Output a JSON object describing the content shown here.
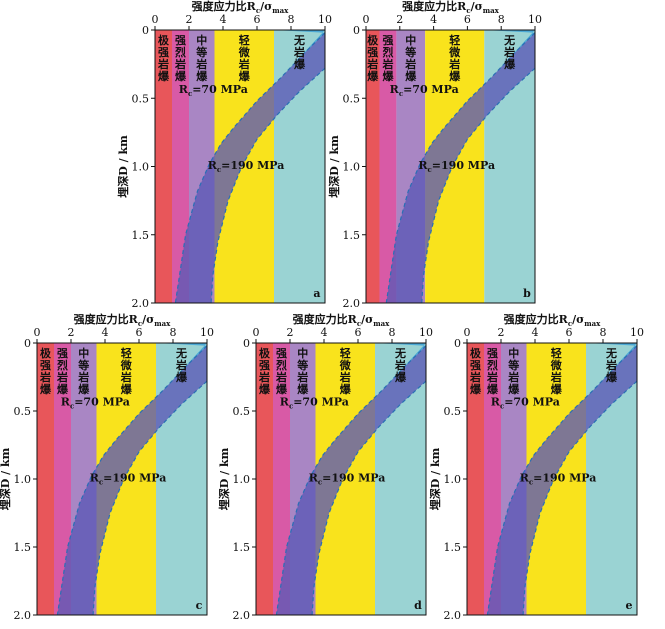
{
  "figure": {
    "x_title": "强度应力比R",
    "x_title_sub": "c",
    "x_title_sigma": "/σ",
    "x_title_sigma_sub": "max",
    "y_title": "埋深D / km"
  },
  "colors": {
    "zone_fills": [
      "#e8565a",
      "#d85aa6",
      "#a986c4",
      "#f9e31c",
      "#9ad3d3"
    ],
    "zone_fills_upper_right": "#2f9ad6",
    "band_fill": "#5b58b6",
    "band_over_yellow": "#9c9468",
    "curve_stroke": "#2a6fb5",
    "axis": "#111111"
  },
  "chart_data": [
    {
      "type": "area",
      "panel_label": "a",
      "xlim": [
        0,
        10
      ],
      "ylim": [
        0,
        2.0
      ],
      "y_inverted": true,
      "x_ticks": [
        0,
        2,
        4,
        6,
        8,
        10
      ],
      "y_ticks": [
        "0",
        "0.5",
        "1.0",
        "1.5",
        "2.0"
      ],
      "y_tick_values": [
        0,
        0.5,
        1.0,
        1.5,
        2.0
      ],
      "zones": [
        {
          "name": "极强岩爆",
          "x_range": [
            0,
            1.0
          ]
        },
        {
          "name": "强烈岩爆",
          "x_range": [
            1.0,
            2.0
          ]
        },
        {
          "name": "中等岩爆",
          "x_range": [
            2.0,
            3.5
          ]
        },
        {
          "name": "轻微岩爆",
          "x_range": [
            3.5,
            7.0
          ]
        },
        {
          "name": "无岩爆",
          "x_range": [
            7.0,
            10.0
          ]
        }
      ],
      "curves": [
        {
          "label": "R",
          "label_sub": "c",
          "label_rest": "=70 MPa",
          "y": [
            0.02,
            0.18,
            0.35,
            0.52,
            0.62,
            0.72,
            0.83,
            0.98,
            1.18,
            1.5,
            2.0
          ],
          "x": [
            10,
            8.7,
            7.4,
            6.0,
            5.3,
            4.6,
            3.9,
            3.2,
            2.5,
            1.8,
            1.2
          ]
        },
        {
          "label": "R",
          "label_sub": "c",
          "label_rest": "=190 MPa",
          "y": [
            0.28,
            0.45,
            0.62,
            0.8,
            1.0,
            1.25,
            1.55,
            1.8,
            2.0
          ],
          "x": [
            10,
            8.5,
            7.2,
            6.0,
            5.1,
            4.3,
            3.7,
            3.4,
            3.3
          ]
        }
      ]
    },
    {
      "type": "area",
      "panel_label": "b",
      "xlim": [
        0,
        10
      ],
      "ylim": [
        0,
        2.0
      ],
      "y_inverted": true,
      "x_ticks": [
        0,
        2,
        4,
        6,
        8,
        10
      ],
      "y_ticks": [
        "0",
        "0.5",
        "1.0",
        "1.5",
        "2.0"
      ],
      "y_tick_values": [
        0,
        0.5,
        1.0,
        1.5,
        2.0
      ],
      "zones": [
        {
          "name": "极强岩爆",
          "x_range": [
            0,
            0.8
          ]
        },
        {
          "name": "强烈岩爆",
          "x_range": [
            0.8,
            1.8
          ]
        },
        {
          "name": "中等岩爆",
          "x_range": [
            1.8,
            3.5
          ]
        },
        {
          "name": "轻微岩爆",
          "x_range": [
            3.5,
            7.0
          ]
        },
        {
          "name": "无岩爆",
          "x_range": [
            7.0,
            10.0
          ]
        }
      ],
      "curves": [
        {
          "label": "R",
          "label_sub": "c",
          "label_rest": "=70 MPa",
          "y": [
            0.02,
            0.18,
            0.35,
            0.52,
            0.62,
            0.72,
            0.83,
            0.98,
            1.18,
            1.5,
            2.0
          ],
          "x": [
            10,
            8.7,
            7.4,
            6.0,
            5.3,
            4.6,
            3.9,
            3.2,
            2.5,
            1.8,
            1.2
          ]
        },
        {
          "label": "R",
          "label_sub": "c",
          "label_rest": "=190 MPa",
          "y": [
            0.28,
            0.45,
            0.62,
            0.8,
            1.0,
            1.25,
            1.55,
            1.8,
            2.0
          ],
          "x": [
            10,
            8.5,
            7.2,
            6.0,
            5.1,
            4.3,
            3.7,
            3.4,
            3.3
          ]
        }
      ]
    },
    {
      "type": "area",
      "panel_label": "c",
      "xlim": [
        0,
        10
      ],
      "ylim": [
        0,
        2.0
      ],
      "y_inverted": true,
      "x_ticks": [
        0,
        2,
        4,
        6,
        8,
        10
      ],
      "y_ticks": [
        "0",
        "0.5",
        "1.0",
        "1.5",
        "2.0"
      ],
      "y_tick_values": [
        0,
        0.5,
        1.0,
        1.5,
        2.0
      ],
      "zones": [
        {
          "name": "极强岩爆",
          "x_range": [
            0,
            1.0
          ]
        },
        {
          "name": "强烈岩爆",
          "x_range": [
            1.0,
            2.0
          ]
        },
        {
          "name": "中等岩爆",
          "x_range": [
            2.0,
            3.5
          ]
        },
        {
          "name": "轻微岩爆",
          "x_range": [
            3.5,
            7.0
          ]
        },
        {
          "name": "无岩爆",
          "x_range": [
            7.0,
            10.0
          ]
        }
      ],
      "curves": [
        {
          "label": "R",
          "label_sub": "c",
          "label_rest": "=70 MPa",
          "y": [
            0.02,
            0.18,
            0.35,
            0.52,
            0.62,
            0.72,
            0.83,
            0.98,
            1.18,
            1.5,
            2.0
          ],
          "x": [
            10,
            8.7,
            7.4,
            6.0,
            5.3,
            4.6,
            3.9,
            3.2,
            2.5,
            1.8,
            1.2
          ]
        },
        {
          "label": "R",
          "label_sub": "c",
          "label_rest": "=190 MPa",
          "y": [
            0.28,
            0.45,
            0.62,
            0.8,
            1.0,
            1.25,
            1.55,
            1.8,
            2.0
          ],
          "x": [
            10,
            8.5,
            7.2,
            6.0,
            5.1,
            4.3,
            3.7,
            3.4,
            3.3
          ]
        }
      ]
    },
    {
      "type": "area",
      "panel_label": "d",
      "xlim": [
        0,
        10
      ],
      "ylim": [
        0,
        2.0
      ],
      "y_inverted": true,
      "x_ticks": [
        0,
        2,
        4,
        6,
        8,
        10
      ],
      "y_ticks": [
        "0",
        "0.5",
        "1.0",
        "1.5",
        "2.0"
      ],
      "y_tick_values": [
        0,
        0.5,
        1.0,
        1.5,
        2.0
      ],
      "zones": [
        {
          "name": "极强岩爆",
          "x_range": [
            0,
            1.0
          ]
        },
        {
          "name": "强烈岩爆",
          "x_range": [
            1.0,
            2.0
          ]
        },
        {
          "name": "中等岩爆",
          "x_range": [
            2.0,
            3.5
          ]
        },
        {
          "name": "轻微岩爆",
          "x_range": [
            3.5,
            7.0
          ]
        },
        {
          "name": "无岩爆",
          "x_range": [
            7.0,
            10.0
          ]
        }
      ],
      "curves": [
        {
          "label": "R",
          "label_sub": "c",
          "label_rest": "=70 MPa",
          "y": [
            0.02,
            0.18,
            0.35,
            0.52,
            0.62,
            0.72,
            0.83,
            0.98,
            1.18,
            1.5,
            2.0
          ],
          "x": [
            10,
            8.7,
            7.4,
            6.0,
            5.3,
            4.6,
            3.9,
            3.2,
            2.5,
            1.8,
            1.2
          ]
        },
        {
          "label": "R",
          "label_sub": "c",
          "label_rest": "=190 MPa",
          "y": [
            0.28,
            0.45,
            0.62,
            0.8,
            1.0,
            1.25,
            1.55,
            1.8,
            2.0
          ],
          "x": [
            10,
            8.5,
            7.2,
            6.0,
            5.1,
            4.3,
            3.7,
            3.4,
            3.3
          ]
        }
      ]
    },
    {
      "type": "area",
      "panel_label": "e",
      "xlim": [
        0,
        10
      ],
      "ylim": [
        0,
        2.0
      ],
      "y_inverted": true,
      "x_ticks": [
        0,
        2,
        4,
        6,
        8,
        10
      ],
      "y_ticks": [
        "0",
        "0.5",
        "1.0",
        "1.5",
        "2.0"
      ],
      "y_tick_values": [
        0,
        0.5,
        1.0,
        1.5,
        2.0
      ],
      "zones": [
        {
          "name": "极强岩爆",
          "x_range": [
            0,
            1.0
          ]
        },
        {
          "name": "强烈岩爆",
          "x_range": [
            1.0,
            2.0
          ]
        },
        {
          "name": "中等岩爆",
          "x_range": [
            2.0,
            3.5
          ]
        },
        {
          "name": "轻微岩爆",
          "x_range": [
            3.5,
            7.0
          ]
        },
        {
          "name": "无岩爆",
          "x_range": [
            7.0,
            10.0
          ]
        }
      ],
      "curves": [
        {
          "label": "R",
          "label_sub": "c",
          "label_rest": "=70 MPa",
          "y": [
            0.02,
            0.18,
            0.35,
            0.52,
            0.62,
            0.72,
            0.83,
            0.98,
            1.18,
            1.5,
            2.0
          ],
          "x": [
            10,
            8.7,
            7.4,
            6.0,
            5.3,
            4.6,
            3.9,
            3.2,
            2.5,
            1.8,
            1.2
          ]
        },
        {
          "label": "R",
          "label_sub": "c",
          "label_rest": "=190 MPa",
          "y": [
            0.28,
            0.45,
            0.62,
            0.8,
            1.0,
            1.25,
            1.55,
            1.8,
            2.0
          ],
          "x": [
            10,
            8.5,
            7.2,
            6.0,
            5.1,
            4.3,
            3.7,
            3.4,
            3.3
          ]
        }
      ]
    }
  ]
}
